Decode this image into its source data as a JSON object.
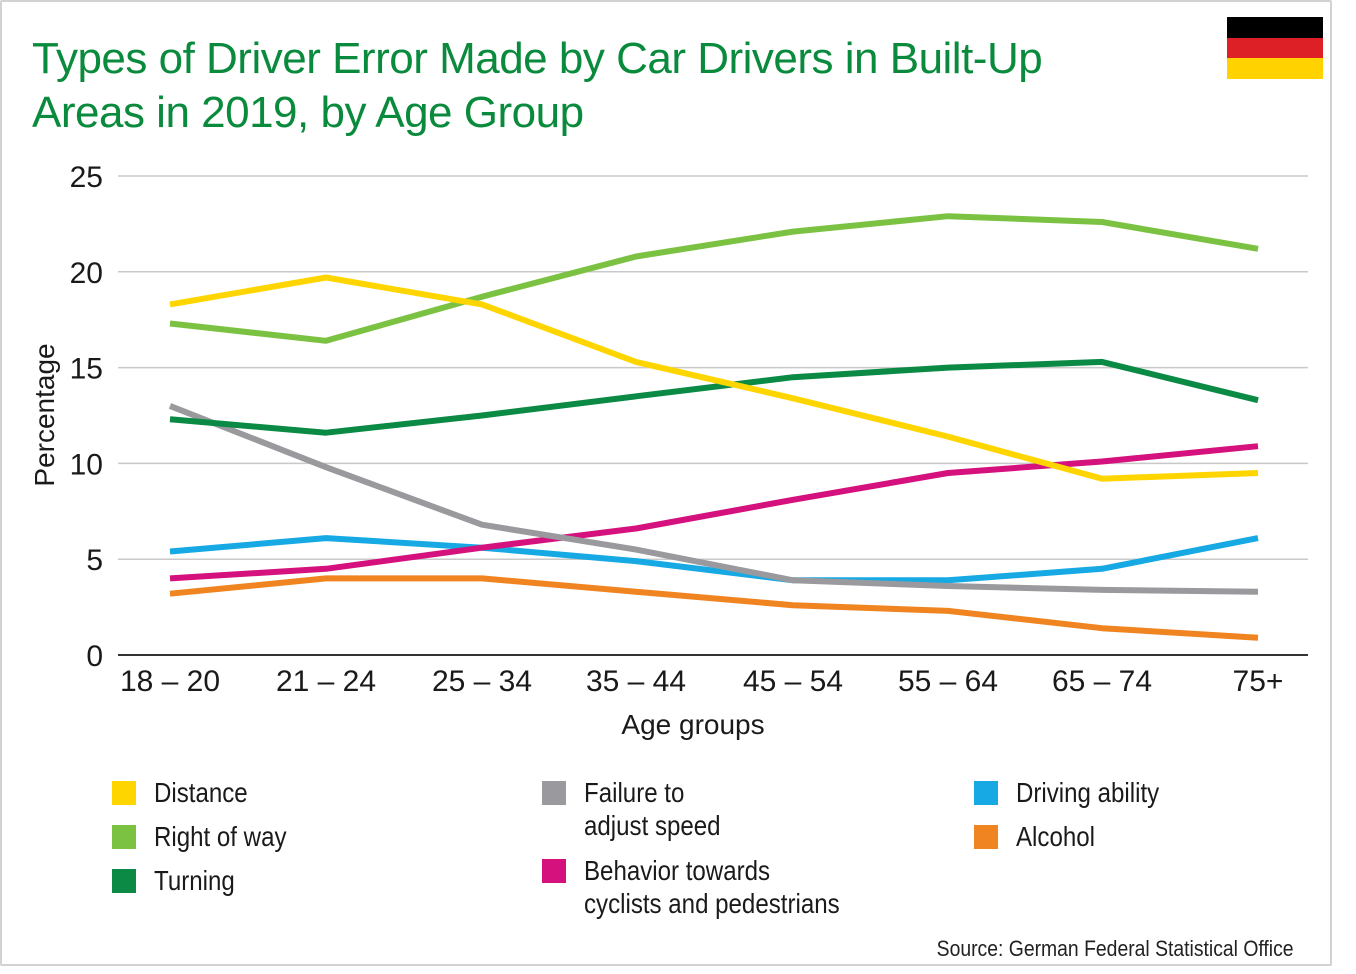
{
  "chart_data": {
    "type": "line",
    "title": "Types of Driver Error Made by Car Drivers in Built-Up Areas in 2019, by Age Group",
    "xlabel": "Age groups",
    "ylabel": "Percentage",
    "ylim": [
      0,
      25
    ],
    "yticks": [
      "0",
      "5",
      "10",
      "15",
      "20",
      "25"
    ],
    "grid": true,
    "legend_position": "bottom",
    "categories": [
      "18 – 20",
      "21 – 24",
      "25 – 34",
      "35 – 44",
      "45 – 54",
      "55 – 64",
      "65 – 74",
      "75+"
    ],
    "series": [
      {
        "name": "Distance",
        "color": "#ffd500",
        "values": [
          18.3,
          19.7,
          18.3,
          15.3,
          13.4,
          11.4,
          9.2,
          9.5
        ]
      },
      {
        "name": "Right of way",
        "color": "#7cc242",
        "values": [
          17.3,
          16.4,
          18.7,
          20.8,
          22.1,
          22.9,
          22.6,
          21.2
        ]
      },
      {
        "name": "Turning",
        "color": "#0a8a44",
        "values": [
          12.3,
          11.6,
          12.5,
          13.5,
          14.5,
          15.0,
          15.3,
          13.3
        ]
      },
      {
        "name": "Failure to adjust speed",
        "color": "#9a9a9e",
        "values": [
          13.0,
          9.8,
          6.8,
          5.5,
          3.9,
          3.6,
          3.4,
          3.3
        ]
      },
      {
        "name": "Behavior towards cyclists and pedestrians",
        "color": "#d4117d",
        "values": [
          4.0,
          4.5,
          5.6,
          6.6,
          8.1,
          9.5,
          10.1,
          10.9
        ]
      },
      {
        "name": "Driving ability",
        "color": "#16a9e3",
        "values": [
          5.4,
          6.1,
          5.6,
          4.9,
          3.9,
          3.9,
          4.5,
          6.1
        ]
      },
      {
        "name": "Alcohol",
        "color": "#f08420",
        "values": [
          3.2,
          4.0,
          4.0,
          3.3,
          2.6,
          2.3,
          1.4,
          0.9
        ]
      }
    ]
  },
  "legend": [
    {
      "label": "Distance",
      "color": "#ffd500"
    },
    {
      "label": "Right of way",
      "color": "#7cc242"
    },
    {
      "label": "Turning",
      "color": "#0a8a44"
    },
    {
      "label": "Failure to\nadjust speed",
      "color": "#9a9a9e"
    },
    {
      "label": "Behavior towards\ncyclists and pedestrians",
      "color": "#d4117d"
    },
    {
      "label": "Driving ability",
      "color": "#16a9e3"
    },
    {
      "label": "Alcohol",
      "color": "#f08420"
    }
  ],
  "flag_colors": [
    "#000000",
    "#dd1f26",
    "#ffd200"
  ],
  "source": "Source: German Federal Statistical Office"
}
